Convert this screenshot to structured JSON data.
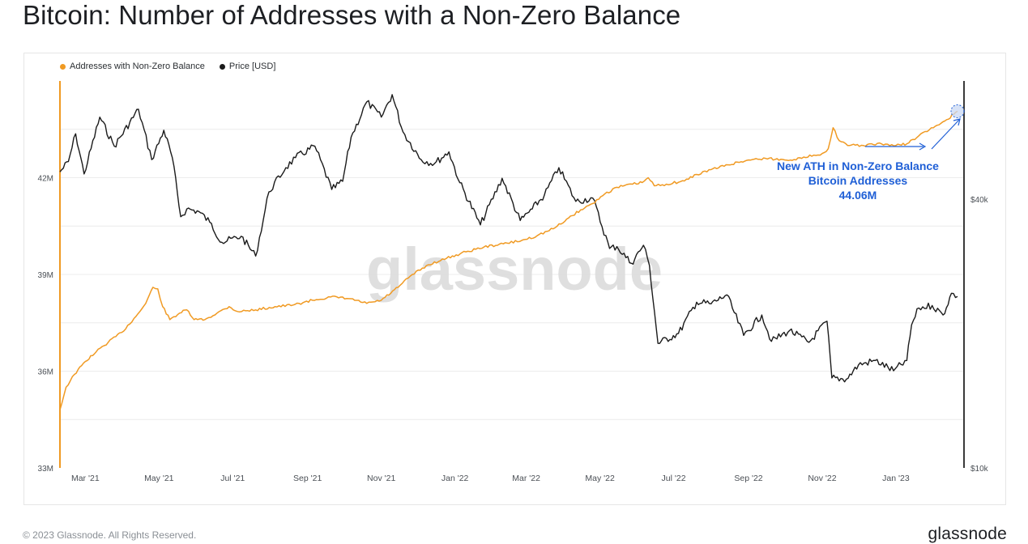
{
  "title": "Bitcoin: Number of Addresses with a Non-Zero Balance",
  "footer": {
    "copyright": "© 2023 Glassnode. All Rights Reserved.",
    "logo_text": "glassnode"
  },
  "watermark": "glassnode",
  "colors": {
    "addresses": "#f09a23",
    "price": "#1b1b1b",
    "annotation": "#1f5fd6",
    "grid": "#ececec"
  },
  "legend": [
    {
      "label": "Addresses with Non-Zero Balance",
      "color": "#f09a23"
    },
    {
      "label": "Price [USD]",
      "color": "#1b1b1b"
    }
  ],
  "annotation": {
    "lines": [
      "New ATH in Non-Zero Balance",
      "Bitcoin Addresses",
      "44.06M"
    ]
  },
  "chart_data": {
    "type": "line",
    "x_tick_labels": [
      "Mar '21",
      "May '21",
      "Jul '21",
      "Sep '21",
      "Nov '21",
      "Jan '22",
      "Mar '22",
      "May '22",
      "Jul '22",
      "Sep '22",
      "Nov '22",
      "Jan '23"
    ],
    "x_tick_dates": [
      "2021-03-01",
      "2021-05-01",
      "2021-07-01",
      "2021-09-01",
      "2021-11-01",
      "2022-01-01",
      "2022-03-01",
      "2022-05-01",
      "2022-07-01",
      "2022-09-01",
      "2022-11-01",
      "2023-01-01"
    ],
    "x_range": [
      "2021-02-08",
      "2023-02-21"
    ],
    "y_left": {
      "ticks": [
        "33M",
        "36M",
        "39M",
        "42M"
      ],
      "range_millions": [
        33,
        45
      ]
    },
    "y_right": {
      "scale": "log",
      "ticks": [
        "$10k",
        "$40k"
      ],
      "range_usd": [
        10000,
        73500
      ]
    },
    "grid": true,
    "legend_position": "top-left",
    "series": [
      {
        "name": "Addresses with Non-Zero Balance",
        "axis": "left",
        "unit": "millions",
        "points": [
          [
            "2021-02-08",
            34.8
          ],
          [
            "2021-02-13",
            35.5
          ],
          [
            "2021-02-20",
            35.9
          ],
          [
            "2021-03-01",
            36.3
          ],
          [
            "2021-03-10",
            36.6
          ],
          [
            "2021-03-20",
            36.9
          ],
          [
            "2021-03-31",
            37.2
          ],
          [
            "2021-04-12",
            37.7
          ],
          [
            "2021-04-20",
            38.1
          ],
          [
            "2021-04-26",
            38.6
          ],
          [
            "2021-04-30",
            38.55
          ],
          [
            "2021-05-04",
            38.0
          ],
          [
            "2021-05-10",
            37.6
          ],
          [
            "2021-05-18",
            37.8
          ],
          [
            "2021-05-24",
            37.9
          ],
          [
            "2021-05-30",
            37.6
          ],
          [
            "2021-06-08",
            37.6
          ],
          [
            "2021-06-18",
            37.8
          ],
          [
            "2021-06-28",
            38.0
          ],
          [
            "2021-07-05",
            37.85
          ],
          [
            "2021-07-20",
            37.9
          ],
          [
            "2021-08-05",
            38.0
          ],
          [
            "2021-08-20",
            38.05
          ],
          [
            "2021-09-05",
            38.2
          ],
          [
            "2021-09-20",
            38.3
          ],
          [
            "2021-10-05",
            38.25
          ],
          [
            "2021-10-20",
            38.1
          ],
          [
            "2021-11-01",
            38.2
          ],
          [
            "2021-11-15",
            38.6
          ],
          [
            "2021-11-25",
            38.95
          ],
          [
            "2021-12-10",
            39.3
          ],
          [
            "2021-12-25",
            39.5
          ],
          [
            "2022-01-10",
            39.7
          ],
          [
            "2022-01-25",
            39.85
          ],
          [
            "2022-02-10",
            39.95
          ],
          [
            "2022-02-25",
            40.05
          ],
          [
            "2022-03-10",
            40.2
          ],
          [
            "2022-03-25",
            40.45
          ],
          [
            "2022-04-05",
            40.75
          ],
          [
            "2022-04-15",
            41.0
          ],
          [
            "2022-04-25",
            41.2
          ],
          [
            "2022-05-05",
            41.5
          ],
          [
            "2022-05-15",
            41.7
          ],
          [
            "2022-05-28",
            41.8
          ],
          [
            "2022-06-05",
            41.85
          ],
          [
            "2022-06-10",
            42.0
          ],
          [
            "2022-06-15",
            41.75
          ],
          [
            "2022-06-25",
            41.8
          ],
          [
            "2022-07-10",
            41.9
          ],
          [
            "2022-07-20",
            42.1
          ],
          [
            "2022-08-01",
            42.25
          ],
          [
            "2022-08-15",
            42.4
          ],
          [
            "2022-09-01",
            42.55
          ],
          [
            "2022-09-15",
            42.6
          ],
          [
            "2022-10-01",
            42.55
          ],
          [
            "2022-10-15",
            42.6
          ],
          [
            "2022-10-25",
            42.7
          ],
          [
            "2022-11-01",
            42.75
          ],
          [
            "2022-11-06",
            42.9
          ],
          [
            "2022-11-10",
            43.55
          ],
          [
            "2022-11-15",
            43.15
          ],
          [
            "2022-11-22",
            43.0
          ],
          [
            "2022-12-05",
            43.0
          ],
          [
            "2022-12-20",
            43.05
          ],
          [
            "2023-01-01",
            43.0
          ],
          [
            "2023-01-10",
            43.05
          ],
          [
            "2023-01-20",
            43.3
          ],
          [
            "2023-02-01",
            43.55
          ],
          [
            "2023-02-12",
            43.8
          ],
          [
            "2023-02-21",
            44.06
          ]
        ]
      },
      {
        "name": "Price [USD]",
        "axis": "right",
        "unit": "USD",
        "points": [
          [
            "2021-02-08",
            46000
          ],
          [
            "2021-02-15",
            48500
          ],
          [
            "2021-02-21",
            56000
          ],
          [
            "2021-02-28",
            45500
          ],
          [
            "2021-03-13",
            61000
          ],
          [
            "2021-03-25",
            52500
          ],
          [
            "2021-04-14",
            63500
          ],
          [
            "2021-04-25",
            49000
          ],
          [
            "2021-05-05",
            57000
          ],
          [
            "2021-05-12",
            49500
          ],
          [
            "2021-05-19",
            36500
          ],
          [
            "2021-05-24",
            38000
          ],
          [
            "2021-06-03",
            37500
          ],
          [
            "2021-06-12",
            35500
          ],
          [
            "2021-06-22",
            32000
          ],
          [
            "2021-07-08",
            33000
          ],
          [
            "2021-07-20",
            29800
          ],
          [
            "2021-07-31",
            41500
          ],
          [
            "2021-08-14",
            47000
          ],
          [
            "2021-08-22",
            49500
          ],
          [
            "2021-09-07",
            52500
          ],
          [
            "2021-09-21",
            42000
          ],
          [
            "2021-09-30",
            43800
          ],
          [
            "2021-10-07",
            55000
          ],
          [
            "2021-10-20",
            66000
          ],
          [
            "2021-11-01",
            61000
          ],
          [
            "2021-11-10",
            68500
          ],
          [
            "2021-11-19",
            56500
          ],
          [
            "2021-12-04",
            49000
          ],
          [
            "2021-12-15",
            48000
          ],
          [
            "2021-12-27",
            51000
          ],
          [
            "2022-01-05",
            43500
          ],
          [
            "2022-01-22",
            35000
          ],
          [
            "2022-02-09",
            44500
          ],
          [
            "2022-02-24",
            35800
          ],
          [
            "2022-03-06",
            38000
          ],
          [
            "2022-03-16",
            40800
          ],
          [
            "2022-03-28",
            47000
          ],
          [
            "2022-04-11",
            39500
          ],
          [
            "2022-04-25",
            40200
          ],
          [
            "2022-05-09",
            31000
          ],
          [
            "2022-05-15",
            31300
          ],
          [
            "2022-05-27",
            28700
          ],
          [
            "2022-06-06",
            31500
          ],
          [
            "2022-06-11",
            28400
          ],
          [
            "2022-06-18",
            19000
          ],
          [
            "2022-07-05",
            20000
          ],
          [
            "2022-07-20",
            23500
          ],
          [
            "2022-08-01",
            23300
          ],
          [
            "2022-08-14",
            24400
          ],
          [
            "2022-08-28",
            19800
          ],
          [
            "2022-09-12",
            22000
          ],
          [
            "2022-09-20",
            19200
          ],
          [
            "2022-10-05",
            20300
          ],
          [
            "2022-10-21",
            19100
          ],
          [
            "2022-11-05",
            21300
          ],
          [
            "2022-11-09",
            15900
          ],
          [
            "2022-11-21",
            15800
          ],
          [
            "2022-12-01",
            17000
          ],
          [
            "2022-12-15",
            17400
          ],
          [
            "2022-12-30",
            16500
          ],
          [
            "2023-01-10",
            17400
          ],
          [
            "2023-01-14",
            20900
          ],
          [
            "2023-01-20",
            22800
          ],
          [
            "2023-01-31",
            23100
          ],
          [
            "2023-02-09",
            22000
          ],
          [
            "2023-02-16",
            24600
          ],
          [
            "2023-02-21",
            24200
          ]
        ]
      }
    ]
  }
}
